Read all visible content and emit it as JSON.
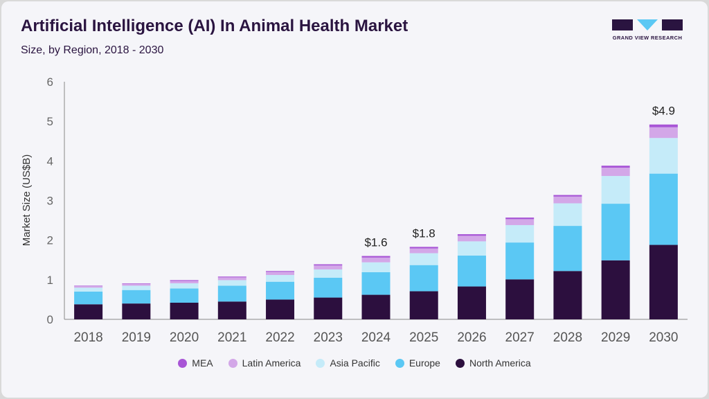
{
  "header": {
    "title": "Artificial Intelligence (AI) In Animal Health Market",
    "subtitle": "Size, by Region, 2018 - 2030"
  },
  "logo": {
    "text": "GRAND VIEW RESEARCH"
  },
  "colors": {
    "MEA": "#a855d6",
    "Latin America": "#d3a7e8",
    "Asia Pacific": "#c5ebf9",
    "Europe": "#5bc8f4",
    "North America": "#2c0f3e",
    "brand": "#2a1440"
  },
  "chart_data": {
    "type": "bar",
    "stacked": true,
    "title": "Artificial Intelligence (AI) In Animal Health Market",
    "subtitle": "Size, by Region, 2018 - 2030",
    "xlabel": "",
    "ylabel": "Market Size (US$B)",
    "ylim": [
      0,
      6
    ],
    "yticks": [
      0,
      1,
      2,
      3,
      4,
      5,
      6
    ],
    "grid": false,
    "legend_position": "bottom",
    "categories": [
      "2018",
      "2019",
      "2020",
      "2021",
      "2022",
      "2023",
      "2024",
      "2025",
      "2026",
      "2027",
      "2028",
      "2029",
      "2030"
    ],
    "series": [
      {
        "name": "North America",
        "values": [
          0.38,
          0.4,
          0.42,
          0.45,
          0.5,
          0.55,
          0.62,
          0.71,
          0.83,
          1.01,
          1.22,
          1.49,
          1.88
        ]
      },
      {
        "name": "Europe",
        "values": [
          0.32,
          0.34,
          0.36,
          0.4,
          0.45,
          0.5,
          0.57,
          0.66,
          0.78,
          0.93,
          1.14,
          1.43,
          1.8
        ]
      },
      {
        "name": "Asia Pacific",
        "values": [
          0.1,
          0.11,
          0.13,
          0.14,
          0.17,
          0.21,
          0.25,
          0.3,
          0.36,
          0.44,
          0.57,
          0.7,
          0.9
        ]
      },
      {
        "name": "Latin America",
        "values": [
          0.04,
          0.05,
          0.06,
          0.07,
          0.08,
          0.1,
          0.12,
          0.12,
          0.14,
          0.15,
          0.17,
          0.21,
          0.27
        ]
      },
      {
        "name": "MEA",
        "values": [
          0.01,
          0.01,
          0.02,
          0.02,
          0.02,
          0.03,
          0.04,
          0.04,
          0.04,
          0.04,
          0.04,
          0.05,
          0.07
        ]
      }
    ],
    "annotations": [
      {
        "category": "2024",
        "label": "$1.6"
      },
      {
        "category": "2025",
        "label": "$1.8"
      },
      {
        "category": "2030",
        "label": "$4.9"
      }
    ]
  },
  "legend": {
    "items": [
      "MEA",
      "Latin America",
      "Asia Pacific",
      "Europe",
      "North America"
    ]
  }
}
